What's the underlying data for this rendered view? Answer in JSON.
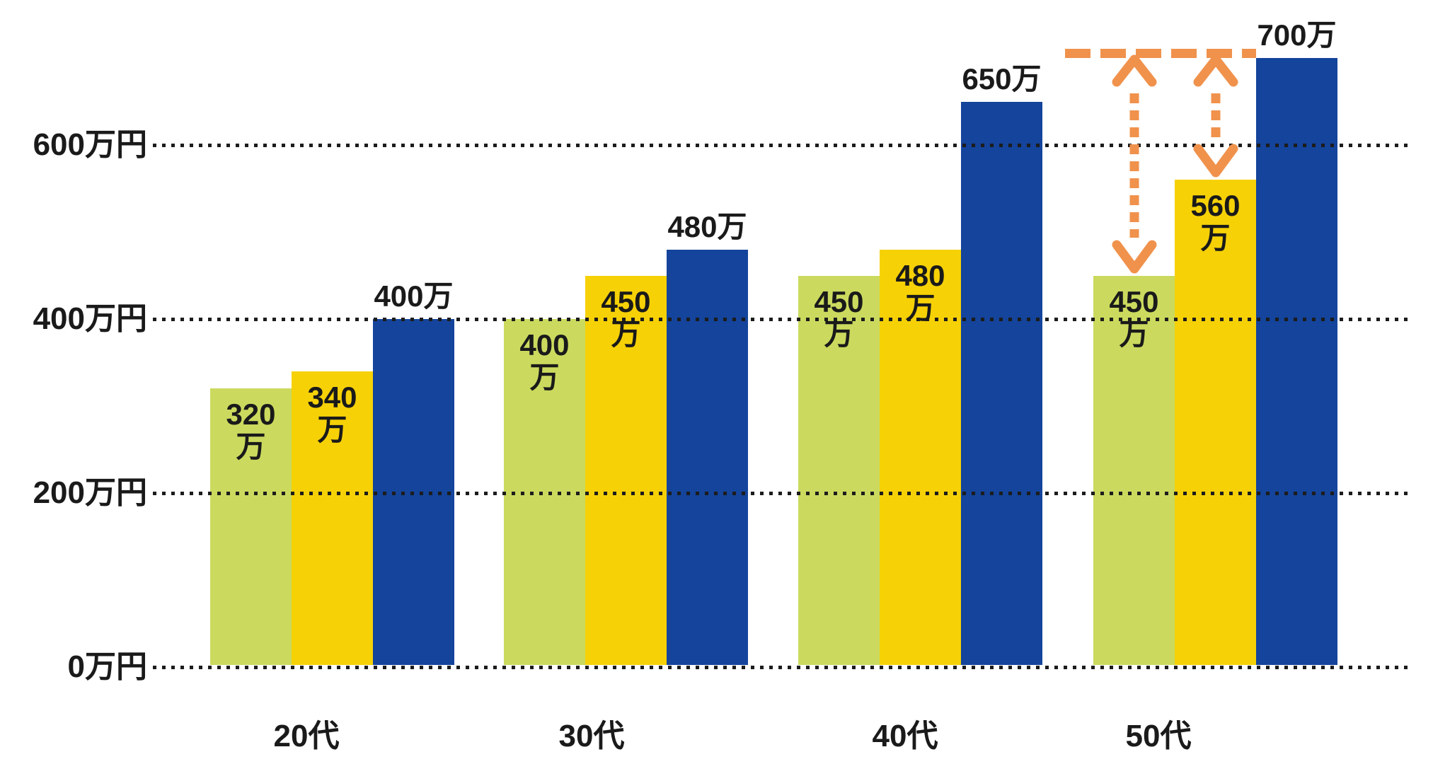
{
  "chart_data": {
    "type": "bar",
    "categories": [
      "20代",
      "30代",
      "40代",
      "50代"
    ],
    "series": [
      {
        "name": "green",
        "color": "#CBDA5E",
        "values": [
          320,
          400,
          450,
          450
        ],
        "labels": [
          "320万",
          "400万",
          "450万",
          "450万"
        ]
      },
      {
        "name": "yellow",
        "color": "#F6D106",
        "values": [
          340,
          450,
          480,
          560
        ],
        "labels": [
          "340万",
          "450万",
          "480万",
          "560万"
        ]
      },
      {
        "name": "blue",
        "color": "#14449B",
        "values": [
          400,
          480,
          650,
          700
        ],
        "labels": [
          "400万",
          "480万",
          "650万",
          "700万"
        ]
      }
    ],
    "y_axis": {
      "unit": "万円",
      "ticks": [
        {
          "value": 0,
          "label": "0万円"
        },
        {
          "value": 200,
          "label": "200万円"
        },
        {
          "value": 400,
          "label": "400万円"
        },
        {
          "value": 600,
          "label": "600万円"
        }
      ]
    },
    "ylim": [
      0,
      730
    ],
    "grid": "dotted-horizontal",
    "legend": "none",
    "text_color": "#1a1a1a",
    "annotation": {
      "type": "difference-arrows",
      "color": "#F0924C",
      "reference_value": 700,
      "reference_category": "50代",
      "targets": [
        {
          "series": "green",
          "value": 450
        },
        {
          "series": "yellow",
          "value": 560
        }
      ]
    }
  }
}
